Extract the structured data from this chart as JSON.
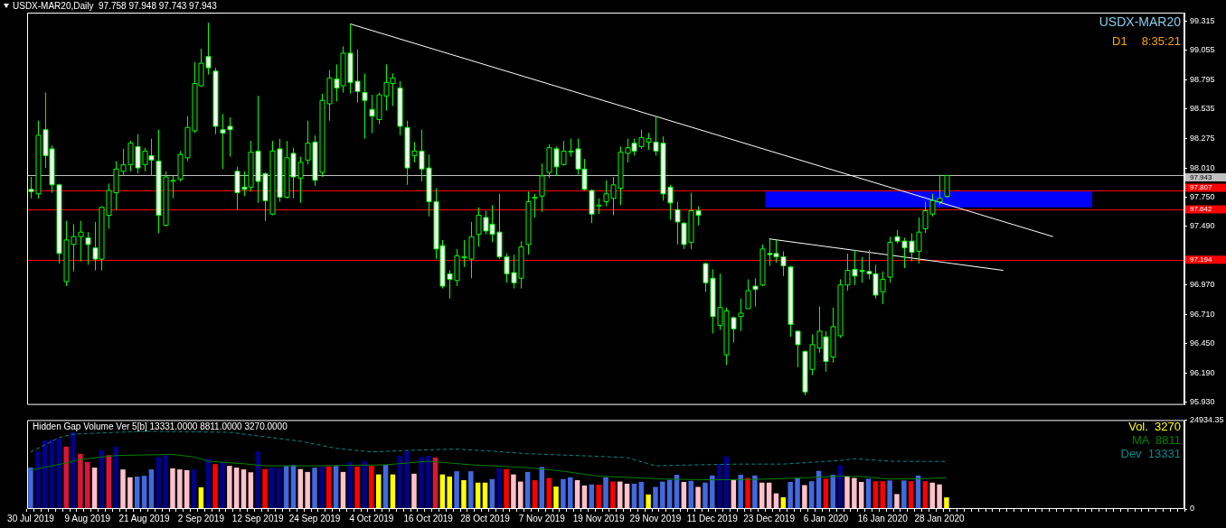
{
  "chart_data": [
    {
      "type": "candlestick",
      "title": "USDX-MAR20,Daily  97.758 97.948 97.743 97.943",
      "tick_labels": "y",
      "categories": [
        null,
        null,
        null,
        null,
        null,
        null,
        null,
        null,
        null,
        null,
        null,
        null,
        null,
        null,
        null,
        null,
        null,
        null,
        null,
        null,
        null,
        null,
        null,
        null,
        null,
        null,
        null,
        null,
        null,
        null,
        null,
        null,
        null,
        null,
        null,
        null,
        null,
        null,
        null,
        null,
        null,
        null,
        null,
        null,
        null,
        null,
        null,
        null,
        null,
        null,
        null,
        null,
        null,
        null,
        null,
        null,
        null,
        null,
        null,
        null,
        null,
        null,
        null,
        null,
        null,
        null,
        null,
        null,
        null,
        null,
        null,
        null,
        null,
        null,
        null,
        null,
        null,
        null,
        null,
        null,
        null,
        null,
        null,
        null,
        null,
        null,
        null,
        null,
        null,
        null,
        null,
        null,
        null,
        null,
        null,
        null,
        null,
        null,
        null,
        null,
        null,
        null,
        null,
        null,
        null,
        null,
        null,
        null,
        null,
        null,
        null,
        null,
        null,
        null,
        null,
        null,
        null,
        null,
        null,
        null,
        null,
        null,
        null,
        null,
        null,
        null,
        null,
        null,
        null,
        null,
        null,
        null,
        null,
        null,
        null,
        null,
        null,
        null,
        null,
        null,
        null,
        null,
        null,
        null,
        null,
        null,
        null,
        null,
        null,
        null,
        null,
        null,
        null,
        null,
        null,
        null,
        null,
        null,
        null,
        null,
        null,
        null,
        null
      ],
      "ohlc": [
        [
          97.82,
          97.93,
          97.74,
          97.8
        ],
        [
          97.78,
          98.43,
          97.74,
          98.3
        ],
        [
          98.35,
          98.68,
          98.01,
          98.12
        ],
        [
          98.18,
          98.21,
          97.79,
          97.86
        ],
        [
          97.86,
          97.87,
          97.16,
          97.25
        ],
        [
          97.0,
          97.54,
          96.96,
          97.37
        ],
        [
          97.33,
          97.51,
          97.09,
          97.4
        ],
        [
          97.4,
          97.54,
          97.18,
          97.44
        ],
        [
          97.39,
          97.44,
          97.15,
          97.33
        ],
        [
          97.3,
          97.53,
          97.1,
          97.2
        ],
        [
          97.2,
          97.67,
          97.1,
          97.66
        ],
        [
          97.59,
          97.87,
          97.47,
          97.81
        ],
        [
          97.79,
          98.07,
          97.64,
          98.0
        ],
        [
          97.98,
          98.18,
          97.94,
          98.04
        ],
        [
          98.04,
          98.25,
          97.98,
          98.23
        ],
        [
          98.2,
          98.31,
          97.96,
          98.01
        ],
        [
          98.04,
          98.19,
          97.98,
          98.16
        ],
        [
          98.12,
          98.27,
          97.94,
          98.08
        ],
        [
          98.07,
          98.35,
          97.43,
          97.59
        ],
        [
          97.5,
          97.98,
          97.49,
          97.93
        ],
        [
          97.9,
          97.94,
          97.74,
          97.9
        ],
        [
          97.91,
          98.16,
          97.89,
          98.13
        ],
        [
          98.1,
          98.47,
          98.07,
          98.37
        ],
        [
          98.34,
          98.95,
          98.32,
          98.76
        ],
        [
          98.74,
          99.07,
          98.73,
          98.94
        ],
        [
          99.0,
          99.3,
          98.84,
          98.9
        ],
        [
          98.87,
          98.9,
          98.31,
          98.38
        ],
        [
          98.35,
          98.49,
          98.0,
          98.32
        ],
        [
          98.38,
          98.46,
          98.11,
          98.35
        ],
        [
          97.98,
          98.02,
          97.64,
          97.79
        ],
        [
          97.84,
          97.98,
          97.76,
          97.82
        ],
        [
          97.84,
          98.25,
          97.8,
          98.15
        ],
        [
          98.16,
          98.65,
          97.7,
          97.89
        ],
        [
          97.96,
          97.97,
          97.54,
          97.72
        ],
        [
          97.6,
          98.25,
          97.59,
          98.16
        ],
        [
          98.18,
          98.27,
          97.71,
          97.75
        ],
        [
          97.75,
          98.25,
          97.74,
          98.1
        ],
        [
          98.14,
          98.19,
          97.74,
          97.93
        ],
        [
          97.92,
          98.11,
          97.7,
          98.06
        ],
        [
          98.08,
          98.43,
          98.04,
          98.23
        ],
        [
          98.24,
          98.3,
          97.85,
          97.9
        ],
        [
          97.97,
          98.67,
          97.93,
          98.61
        ],
        [
          98.58,
          98.88,
          98.43,
          98.81
        ],
        [
          98.8,
          98.93,
          98.6,
          98.72
        ],
        [
          98.74,
          99.09,
          98.68,
          99.03
        ],
        [
          99.03,
          99.29,
          98.67,
          98.77
        ],
        [
          98.78,
          99.06,
          98.59,
          98.69
        ],
        [
          98.68,
          98.85,
          98.27,
          98.61
        ],
        [
          98.53,
          98.66,
          98.32,
          98.47
        ],
        [
          98.44,
          98.68,
          98.4,
          98.66
        ],
        [
          98.65,
          98.93,
          98.52,
          98.77
        ],
        [
          98.76,
          98.85,
          98.56,
          98.81
        ],
        [
          98.72,
          98.78,
          98.3,
          98.38
        ],
        [
          98.37,
          98.43,
          97.86,
          98.01
        ],
        [
          98.12,
          98.24,
          98.06,
          98.16
        ],
        [
          98.16,
          98.35,
          97.89,
          98.0
        ],
        [
          98.01,
          98.13,
          97.58,
          97.71
        ],
        [
          97.71,
          97.83,
          97.2,
          97.29
        ],
        [
          97.32,
          97.37,
          96.94,
          96.96
        ],
        [
          97.07,
          97.1,
          96.85,
          97.02
        ],
        [
          97.01,
          97.29,
          96.96,
          97.23
        ],
        [
          97.22,
          97.37,
          97.13,
          97.22
        ],
        [
          97.2,
          97.53,
          97.03,
          97.4
        ],
        [
          97.42,
          97.66,
          97.31,
          97.59
        ],
        [
          97.57,
          97.63,
          97.42,
          97.45
        ],
        [
          97.51,
          97.68,
          97.35,
          97.42
        ],
        [
          97.44,
          97.78,
          97.2,
          97.22
        ],
        [
          97.22,
          97.25,
          96.99,
          97.07
        ],
        [
          97.08,
          97.24,
          96.94,
          96.99
        ],
        [
          97.03,
          97.36,
          96.94,
          97.31
        ],
        [
          97.33,
          97.8,
          97.24,
          97.71
        ],
        [
          97.74,
          97.78,
          97.57,
          97.75
        ],
        [
          97.76,
          98.05,
          97.62,
          97.94
        ],
        [
          97.97,
          98.22,
          97.92,
          98.19
        ],
        [
          98.18,
          98.2,
          97.94,
          98.02
        ],
        [
          98.04,
          98.25,
          98.03,
          98.16
        ],
        [
          98.16,
          98.27,
          98.11,
          98.16
        ],
        [
          98.18,
          98.27,
          97.95,
          98.0
        ],
        [
          98.0,
          98.09,
          97.81,
          97.82
        ],
        [
          97.81,
          97.82,
          97.52,
          97.6
        ],
        [
          97.68,
          97.74,
          97.6,
          97.68
        ],
        [
          97.71,
          97.9,
          97.67,
          97.78
        ],
        [
          97.74,
          97.93,
          97.59,
          97.86
        ],
        [
          97.83,
          98.2,
          97.68,
          98.15
        ],
        [
          98.14,
          98.27,
          98.06,
          98.19
        ],
        [
          98.23,
          98.27,
          98.12,
          98.16
        ],
        [
          98.2,
          98.35,
          98.18,
          98.28
        ],
        [
          98.24,
          98.32,
          98.17,
          98.27
        ],
        [
          98.24,
          98.47,
          98.12,
          98.16
        ],
        [
          98.23,
          98.29,
          97.72,
          97.78
        ],
        [
          97.84,
          97.86,
          97.55,
          97.7
        ],
        [
          97.64,
          97.71,
          97.33,
          97.53
        ],
        [
          97.52,
          97.53,
          97.29,
          97.33
        ],
        [
          97.35,
          97.79,
          97.29,
          97.63
        ],
        [
          97.63,
          97.67,
          97.5,
          97.59
        ],
        [
          97.16,
          97.17,
          96.91,
          96.99
        ],
        [
          97.03,
          97.11,
          96.54,
          96.69
        ],
        [
          96.61,
          97.07,
          96.57,
          96.77
        ],
        [
          96.35,
          96.77,
          96.26,
          96.74
        ],
        [
          96.68,
          96.69,
          96.46,
          96.58
        ],
        [
          96.69,
          96.85,
          96.56,
          96.72
        ],
        [
          96.76,
          97.02,
          96.76,
          96.92
        ],
        [
          96.96,
          97.03,
          96.78,
          96.93
        ],
        [
          96.97,
          97.33,
          96.96,
          97.29
        ],
        [
          97.25,
          97.38,
          97.14,
          97.24
        ],
        [
          97.25,
          97.37,
          97.17,
          97.22
        ],
        [
          97.22,
          97.27,
          97.05,
          97.14
        ],
        [
          97.13,
          97.14,
          96.51,
          96.62
        ],
        [
          96.56,
          96.56,
          96.24,
          96.44
        ],
        [
          96.38,
          96.39,
          95.99,
          96.02
        ],
        [
          96.22,
          96.53,
          96.17,
          96.44
        ],
        [
          96.41,
          96.78,
          96.37,
          96.56
        ],
        [
          96.51,
          96.56,
          96.2,
          96.29
        ],
        [
          96.33,
          96.77,
          96.28,
          96.6
        ],
        [
          96.52,
          97.02,
          96.5,
          96.97
        ],
        [
          96.97,
          97.25,
          96.92,
          97.1
        ],
        [
          97.11,
          97.28,
          96.97,
          97.05
        ],
        [
          97.1,
          97.22,
          96.99,
          97.09
        ],
        [
          97.09,
          97.28,
          97.02,
          97.07
        ],
        [
          97.07,
          97.15,
          96.85,
          96.88
        ],
        [
          96.91,
          97.09,
          96.8,
          97.02
        ],
        [
          97.04,
          97.4,
          96.99,
          97.35
        ],
        [
          97.4,
          97.46,
          97.34,
          97.36
        ],
        [
          97.36,
          97.39,
          97.12,
          97.3
        ],
        [
          97.36,
          97.43,
          97.18,
          97.26
        ],
        [
          97.27,
          97.57,
          97.16,
          97.44
        ],
        [
          97.47,
          97.71,
          97.43,
          97.63
        ],
        [
          97.6,
          97.78,
          97.58,
          97.72
        ],
        [
          97.71,
          97.95,
          97.68,
          97.74
        ],
        [
          97.758,
          97.948,
          97.743,
          97.943
        ],
        null,
        null,
        null,
        null,
        null,
        null,
        null,
        null,
        null,
        null,
        null,
        null,
        null,
        null,
        null,
        null,
        null,
        null,
        null,
        null,
        null,
        null,
        null,
        null,
        null,
        null,
        null,
        null,
        null,
        null,
        null,
        null,
        null
      ],
      "series": [
        {
          "type": "line",
          "color": "#ffffff",
          "values": [
            null,
            null,
            null,
            null,
            null,
            null,
            null,
            null,
            null,
            null,
            null,
            null,
            null,
            null,
            null,
            null,
            null,
            null,
            null,
            null,
            null,
            null,
            null,
            null,
            null,
            null,
            null,
            null,
            null,
            null,
            null,
            null,
            null,
            null,
            null,
            null,
            null,
            null,
            null,
            null,
            null,
            null,
            null,
            null,
            null,
            99.29,
            null,
            null,
            null,
            null,
            null,
            null,
            null,
            null,
            null,
            null,
            null,
            null,
            null,
            null,
            null,
            null,
            null,
            null,
            null,
            null,
            null,
            null,
            null,
            null,
            null,
            null,
            null,
            null,
            null,
            null,
            null,
            null,
            null,
            null,
            null,
            null,
            null,
            null,
            null,
            null,
            null,
            null,
            null,
            null,
            null,
            null,
            null,
            null,
            null,
            null,
            null,
            null,
            null,
            null,
            null,
            null,
            null,
            null,
            null,
            null,
            null,
            null,
            null,
            null,
            null,
            null,
            null,
            null,
            null,
            null,
            null,
            null,
            null,
            null,
            null,
            null,
            null,
            null,
            null,
            null,
            null,
            null,
            null,
            null,
            null,
            null,
            null,
            null,
            null,
            null,
            null,
            null,
            null,
            null,
            null,
            null,
            null,
            null,
            97.4,
            null,
            null,
            null,
            null,
            null,
            null,
            null,
            null,
            null,
            null,
            null,
            null,
            null,
            null,
            null,
            null,
            null,
            null
          ]
        },
        {
          "type": "line",
          "color": "#ffffff",
          "values": [
            null,
            null,
            null,
            null,
            null,
            null,
            null,
            null,
            null,
            null,
            null,
            null,
            null,
            null,
            null,
            null,
            null,
            null,
            null,
            null,
            null,
            null,
            null,
            null,
            null,
            null,
            null,
            null,
            null,
            null,
            null,
            null,
            null,
            null,
            null,
            null,
            null,
            null,
            null,
            null,
            null,
            null,
            null,
            null,
            null,
            null,
            null,
            null,
            null,
            null,
            null,
            null,
            null,
            null,
            null,
            null,
            null,
            null,
            null,
            null,
            null,
            null,
            null,
            null,
            null,
            null,
            null,
            null,
            null,
            null,
            null,
            null,
            null,
            null,
            null,
            null,
            null,
            null,
            null,
            null,
            null,
            null,
            null,
            null,
            null,
            null,
            null,
            null,
            null,
            null,
            null,
            null,
            null,
            null,
            null,
            null,
            null,
            null,
            null,
            null,
            null,
            null,
            null,
            null,
            97.38,
            null,
            null,
            null,
            null,
            null,
            null,
            null,
            null,
            null,
            null,
            null,
            null,
            null,
            null,
            null,
            null,
            null,
            null,
            null,
            null,
            null,
            null,
            null,
            null,
            null,
            null,
            null,
            null,
            null,
            null,
            null,
            null,
            97.1,
            null,
            null,
            null,
            null,
            null,
            null,
            null,
            null,
            null,
            null,
            null,
            null,
            null,
            null,
            null,
            null,
            null,
            null,
            null,
            null,
            null,
            null,
            null,
            null,
            null
          ]
        }
      ],
      "ylim": [
        95.905,
        99.39
      ],
      "yticks": [
        99.315,
        99.055,
        98.795,
        98.535,
        98.275,
        {
          "value": 98.01,
          "label": "98.010"
        },
        {
          "value": 97.75,
          "label": "97.750"
        },
        {
          "value": 97.49,
          "label": "97.490"
        },
        {
          "value": 96.97,
          "label": "96.970"
        },
        {
          "value": 96.71,
          "label": "96.710"
        },
        {
          "value": 96.45,
          "label": "96.450"
        },
        {
          "value": 96.19,
          "label": "96.190"
        },
        {
          "value": 95.93,
          "label": "95.930"
        }
      ],
      "ref_lines": [
        {
          "axis": "y",
          "value": 97.943,
          "label": "97.943",
          "color": "#c0c0c0"
        },
        {
          "axis": "y",
          "value": 97.807,
          "label": "97.807",
          "color": "#ff0000"
        },
        {
          "axis": "y",
          "value": 97.642,
          "label": "97.642",
          "color": "#ff0000"
        },
        {
          "axis": "y",
          "value": 97.194,
          "label": "97.194",
          "color": "#ff0000"
        }
      ],
      "bands": [
        {
          "axis": "y",
          "from": 97.66,
          "to": 97.8,
          "color": "#0000ff"
        }
      ],
      "annotations": [
        "USDX-MAR20",
        "D1",
        "8:35:21"
      ]
    },
    {
      "type": "bar",
      "title": "Hidden Gap Volume Ver 5[b] 13331.0000 8811.0000 3270.0000",
      "categories": [
        "30 Jul 2019",
        null,
        null,
        null,
        null,
        null,
        null,
        null,
        "9 Aug 2019",
        null,
        null,
        null,
        null,
        null,
        null,
        null,
        "21 Aug 2019",
        null,
        null,
        null,
        null,
        null,
        null,
        null,
        "2 Sep 2019",
        null,
        null,
        null,
        null,
        null,
        null,
        null,
        "12 Sep 2019",
        null,
        null,
        null,
        null,
        null,
        null,
        null,
        "24 Sep 2019",
        null,
        null,
        null,
        null,
        null,
        null,
        null,
        "4 Oct 2019",
        null,
        null,
        null,
        null,
        null,
        null,
        null,
        "16 Oct 2019",
        null,
        null,
        null,
        null,
        null,
        null,
        null,
        "28 Oct 2019",
        null,
        null,
        null,
        null,
        null,
        null,
        null,
        "7 Nov 2019",
        null,
        null,
        null,
        null,
        null,
        null,
        null,
        "19 Nov 2019",
        null,
        null,
        null,
        null,
        null,
        null,
        null,
        "29 Nov 2019",
        null,
        null,
        null,
        null,
        null,
        null,
        null,
        "11 Dec 2019",
        null,
        null,
        null,
        null,
        null,
        null,
        null,
        "23 Dec 2019",
        null,
        null,
        null,
        null,
        null,
        null,
        null,
        "6 Jan 2020",
        null,
        null,
        null,
        null,
        null,
        null,
        null,
        "16 Jan 2020",
        null,
        null,
        null,
        null,
        null,
        null,
        null,
        "28 Jan 2020",
        null,
        null,
        null,
        null,
        null,
        null,
        null,
        null,
        null,
        null,
        null,
        null,
        null,
        null,
        null,
        null,
        null,
        null,
        null,
        null,
        null,
        null,
        null,
        null,
        null,
        null,
        null,
        null,
        null,
        null,
        null,
        null,
        null,
        null
      ],
      "series": [
        {
          "type": "bar",
          "colors": [
            "#4169e1",
            "#00008b",
            "#00008b",
            "#00008b",
            "#00008b",
            "#dc143c",
            "#00008b",
            "#dc143c",
            "#dc143c",
            "#ffc0cb",
            "#00008b",
            "#dc143c",
            "#00008b",
            "#ffc0cb",
            "#ffc0cb",
            "#4169e1",
            "#4169e1",
            "#4169e1",
            "#00008b",
            "#00008b",
            "#ffc0cb",
            "#ffc0cb",
            "#ffc0cb",
            "#00008b",
            "#ffff00",
            "#00008b",
            "#ff0000",
            "#00008b",
            "#ffc0cb",
            "#ffc0cb",
            "#ffc0cb",
            "#ffc0cb",
            "#00008b",
            "#ff0000",
            "#00008b",
            "#00008b",
            "#4169e1",
            "#4169e1",
            "#ffc0cb",
            "#ffc0cb",
            "#4169e1",
            "#00008b",
            "#ff0000",
            "#4169e1",
            "#ffc0cb",
            "#00008b",
            "#ff0000",
            "#00008b",
            "#ff0000",
            "#ffff00",
            "#4169e1",
            "#ffff00",
            "#00008b",
            "#00008b",
            "#ffc0cb",
            "#00008b",
            "#00008b",
            "#dc143c",
            "#ffff00",
            "#ffff00",
            "#4169e1",
            "#ffff00",
            "#4169e1",
            "#ffff00",
            "#ffff00",
            "#4169e1",
            "#00008b",
            "#ff0000",
            "#ffc0cb",
            "#ffc0cb",
            "#4169e1",
            "#ff0000",
            "#4169e1",
            "#ff0000",
            "#ffff00",
            "#4169e1",
            "#4169e1",
            "#ffc0cb",
            "#ffc0cb",
            "#4169e1",
            "#ff0000",
            "#4169e1",
            "#ff0000",
            "#ffc0cb",
            "#ffc0cb",
            "#4169e1",
            "#4169e1",
            "#ffff00",
            "#4169e1",
            "#4169e1",
            "#4169e1",
            "#4169e1",
            "#ffc0cb",
            "#4169e1",
            "#ffc0cb",
            "#4169e1",
            "#4169e1",
            "#00008b",
            "#00008b",
            "#ffc0cb",
            "#4169e1",
            "#ff0000",
            "#4169e1",
            "#ffc0cb",
            "#ffc0cb",
            "#ffc0cb",
            "#ffff00",
            "#4169e1",
            "#4169e1",
            "#ffc0cb",
            "#4169e1",
            "#4169e1",
            "#ff0000",
            "#4169e1",
            "#00008b",
            "#ffc0cb",
            "#ffc0cb",
            "#ffc0cb",
            "#4169e1",
            "#ff0000",
            "#ff0000",
            "#4169e1",
            "#ffc0cb",
            "#4169e1",
            "#ff0000",
            "#4169e1",
            "#ff0000",
            "#ffc0cb",
            "#ffc0cb",
            "#ffff00",
            null,
            null,
            null,
            null,
            null,
            null,
            null,
            null,
            null,
            null,
            null,
            null,
            null,
            null,
            null,
            null,
            null,
            null,
            null,
            null,
            null,
            null,
            null,
            null,
            null,
            null,
            null,
            null,
            null,
            null,
            null,
            null,
            null
          ],
          "values": [
            11600,
            16200,
            19200,
            19500,
            19700,
            17500,
            21500,
            15500,
            13200,
            11600,
            16500,
            15100,
            17500,
            11100,
            8900,
            9100,
            9300,
            11100,
            14600,
            15100,
            11400,
            11100,
            10900,
            11100,
            6100,
            14100,
            12600,
            13100,
            12100,
            11600,
            11100,
            10300,
            16200,
            11200,
            11600,
            11600,
            12100,
            12300,
            11200,
            10400,
            11600,
            11900,
            11900,
            12100,
            10400,
            13100,
            11900,
            13400,
            12100,
            9700,
            12400,
            9700,
            14900,
            16200,
            9900,
            14600,
            14900,
            14400,
            9700,
            9100,
            10600,
            8100,
            10600,
            7400,
            7400,
            8400,
            11400,
            11200,
            9700,
            7700,
            10400,
            8100,
            11800,
            8700,
            6300,
            8400,
            8900,
            8100,
            6600,
            6900,
            6800,
            8900,
            7700,
            7700,
            7100,
            7100,
            7600,
            4100,
            6200,
            7700,
            8200,
            9600,
            7600,
            7900,
            6200,
            7400,
            9400,
            12600,
            14800,
            8300,
            9600,
            8700,
            9400,
            7400,
            7400,
            4400,
            3300,
            7600,
            8700,
            6700,
            7800,
            10700,
            8500,
            9600,
            12200,
            9100,
            8700,
            7600,
            8500,
            7800,
            7800,
            8000,
            4200,
            8000,
            7800,
            9400,
            7800,
            7400,
            6900,
            3270,
            null,
            null,
            null,
            null,
            null,
            null,
            null,
            null,
            null,
            null,
            null,
            null,
            null,
            null,
            null,
            null,
            null,
            null,
            null,
            null,
            null,
            null,
            null,
            null,
            null,
            null,
            null,
            null,
            null,
            null,
            null,
            null,
            null
          ]
        },
        {
          "type": "line",
          "color": "#008000",
          "values": [
            10900,
            null,
            null,
            null,
            null,
            12900,
            null,
            13900,
            null,
            null,
            null,
            null,
            15000,
            null,
            null,
            null,
            null,
            null,
            null,
            null,
            15300,
            null,
            null,
            14600,
            null,
            13400,
            null,
            null,
            null,
            null,
            12700,
            null,
            null,
            12100,
            null,
            null,
            null,
            null,
            null,
            null,
            12100,
            null,
            null,
            null,
            null,
            null,
            null,
            null,
            null,
            null,
            12400,
            null,
            null,
            null,
            null,
            null,
            13400,
            null,
            null,
            12900,
            null,
            null,
            12400,
            null,
            null,
            null,
            null,
            null,
            null,
            null,
            11600,
            null,
            null,
            null,
            null,
            10600,
            null,
            null,
            null,
            null,
            9200,
            null,
            null,
            null,
            8900,
            null,
            null,
            null,
            null,
            8400,
            null,
            null,
            null,
            null,
            null,
            null,
            8200,
            null,
            null,
            null,
            null,
            null,
            8300,
            null,
            null,
            null,
            null,
            8600,
            null,
            null,
            null,
            null,
            null,
            null,
            9200,
            null,
            null,
            9100,
            null,
            null,
            null,
            8400,
            null,
            null,
            null,
            null,
            8500,
            null,
            null,
            8811,
            null,
            null,
            null,
            null,
            null,
            null,
            null,
            null,
            null,
            null,
            null,
            null,
            null,
            null,
            null,
            null,
            null,
            null,
            null,
            null,
            null,
            null,
            null,
            null,
            null,
            null,
            null,
            null,
            null,
            null,
            null,
            null,
            null
          ]
        },
        {
          "type": "line",
          "color": "#008b8b",
          "line_style": "dashed",
          "values": [
            16000,
            null,
            null,
            null,
            20000,
            null,
            21000,
            null,
            null,
            null,
            null,
            null,
            null,
            null,
            null,
            null,
            21800,
            null,
            null,
            null,
            null,
            null,
            null,
            null,
            null,
            null,
            null,
            null,
            21500,
            null,
            null,
            null,
            20500,
            null,
            null,
            null,
            null,
            null,
            19000,
            null,
            null,
            null,
            null,
            17000,
            null,
            null,
            null,
            null,
            16000,
            null,
            null,
            null,
            null,
            null,
            16500,
            null,
            null,
            null,
            null,
            null,
            16800,
            null,
            null,
            null,
            null,
            16200,
            null,
            null,
            null,
            null,
            15500,
            null,
            null,
            null,
            null,
            null,
            null,
            null,
            null,
            null,
            null,
            14700,
            null,
            null,
            14400,
            null,
            null,
            null,
            12100,
            null,
            null,
            null,
            null,
            null,
            12400,
            null,
            null,
            null,
            null,
            null,
            12600,
            null,
            null,
            null,
            null,
            null,
            12600,
            null,
            null,
            null,
            null,
            null,
            null,
            null,
            13600,
            null,
            14100,
            null,
            null,
            null,
            null,
            13400,
            null,
            null,
            null,
            null,
            null,
            null,
            null,
            13331,
            null,
            null,
            null,
            null,
            null,
            null,
            null,
            null,
            null,
            null,
            null,
            null,
            null,
            null,
            null,
            null,
            null,
            null,
            null,
            null,
            null,
            null,
            null,
            null,
            null,
            null,
            null,
            null,
            null,
            null,
            null,
            null,
            null
          ]
        }
      ],
      "ylim": [
        0,
        24934.35
      ],
      "yticks": [
        0,
        {
          "value": 24934.35,
          "label": "24934.35"
        }
      ],
      "annotations": [
        "Vol.  3270",
        "MA  8811",
        "Dev  13331"
      ]
    }
  ]
}
